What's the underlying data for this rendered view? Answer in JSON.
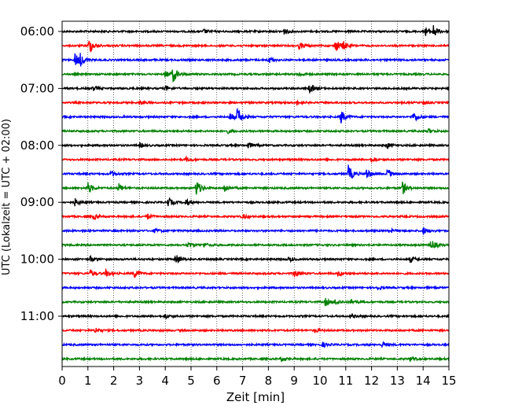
{
  "chart_data": {
    "type": "line",
    "title": "",
    "xlabel": "Zeit  [min]",
    "ylabel": "UTC (Lokalzeit = UTC + 02:00)",
    "xlim": [
      0,
      15
    ],
    "x_ticks": [
      0,
      1,
      2,
      3,
      4,
      5,
      6,
      7,
      8,
      9,
      10,
      11,
      12,
      13,
      14,
      15
    ],
    "x_tick_labels": [
      "0",
      "1",
      "2",
      "3",
      "4",
      "5",
      "6",
      "7",
      "8",
      "9",
      "10",
      "11",
      "12",
      "13",
      "14",
      "15"
    ],
    "y_tick_labels": [
      "06:00",
      "07:00",
      "08:00",
      "09:00",
      "10:00",
      "11:00"
    ],
    "grid": "vertical dotted lines at each minute",
    "trace_interval_minutes": 15,
    "start_time": "06:00",
    "colors": [
      "#000000",
      "#ff0000",
      "#0000ff",
      "#008000"
    ],
    "series": [
      {
        "start": "06:00",
        "color": "#000000",
        "events": [
          [
            5.5,
            0.3
          ],
          [
            8.6,
            0.4
          ],
          [
            14.1,
            0.6
          ],
          [
            14.4,
            0.8
          ]
        ]
      },
      {
        "start": "06:15",
        "color": "#ff0000",
        "events": [
          [
            1.05,
            1.1
          ],
          [
            9.2,
            0.5
          ],
          [
            10.6,
            0.9
          ],
          [
            10.9,
            0.5
          ]
        ]
      },
      {
        "start": "06:30",
        "color": "#0000ff",
        "events": [
          [
            0.5,
            1.0
          ],
          [
            0.7,
            0.7
          ],
          [
            8.0,
            0.4
          ]
        ]
      },
      {
        "start": "06:45",
        "color": "#008000",
        "events": [
          [
            4.0,
            0.5
          ],
          [
            4.3,
            1.1
          ],
          [
            9.2,
            0.3
          ]
        ]
      },
      {
        "start": "07:00",
        "color": "#000000",
        "events": [
          [
            1.2,
            0.3
          ],
          [
            4.0,
            0.3
          ],
          [
            9.6,
            0.7
          ]
        ]
      },
      {
        "start": "07:15",
        "color": "#ff0000",
        "events": [
          [
            3.0,
            0.3
          ],
          [
            9.1,
            0.3
          ],
          [
            14.0,
            0.3
          ]
        ]
      },
      {
        "start": "07:30",
        "color": "#0000ff",
        "events": [
          [
            6.5,
            0.6
          ],
          [
            6.8,
            1.3
          ],
          [
            10.8,
            1.0
          ],
          [
            13.6,
            0.8
          ]
        ]
      },
      {
        "start": "07:45",
        "color": "#008000",
        "events": [
          [
            6.4,
            0.3
          ],
          [
            14.2,
            0.3
          ]
        ]
      },
      {
        "start": "08:00",
        "color": "#000000",
        "events": [
          [
            3.0,
            0.3
          ],
          [
            7.2,
            0.5
          ],
          [
            12.6,
            0.4
          ]
        ]
      },
      {
        "start": "08:15",
        "color": "#ff0000",
        "events": [
          [
            4.8,
            0.3
          ],
          [
            12.0,
            0.3
          ]
        ]
      },
      {
        "start": "08:30",
        "color": "#0000ff",
        "events": [
          [
            1.9,
            0.4
          ],
          [
            11.1,
            1.2
          ],
          [
            11.8,
            0.8
          ],
          [
            12.6,
            0.7
          ]
        ]
      },
      {
        "start": "08:45",
        "color": "#008000",
        "events": [
          [
            1.0,
            0.8
          ],
          [
            2.2,
            0.6
          ],
          [
            5.2,
            1.2
          ],
          [
            6.3,
            0.6
          ],
          [
            13.2,
            0.9
          ]
        ]
      },
      {
        "start": "09:00",
        "color": "#000000",
        "events": [
          [
            0.5,
            0.5
          ],
          [
            4.1,
            0.7
          ],
          [
            4.8,
            0.5
          ]
        ]
      },
      {
        "start": "09:15",
        "color": "#ff0000",
        "events": [
          [
            1.2,
            0.4
          ],
          [
            3.3,
            0.4
          ],
          [
            7.0,
            0.3
          ]
        ]
      },
      {
        "start": "09:30",
        "color": "#0000ff",
        "events": [
          [
            3.6,
            0.3
          ],
          [
            12.7,
            0.3
          ],
          [
            14.0,
            0.5
          ]
        ]
      },
      {
        "start": "09:45",
        "color": "#008000",
        "events": [
          [
            4.9,
            0.4
          ],
          [
            5.5,
            0.3
          ],
          [
            14.3,
            0.8
          ]
        ]
      },
      {
        "start": "10:00",
        "color": "#000000",
        "events": [
          [
            1.1,
            0.4
          ],
          [
            4.4,
            0.9
          ],
          [
            8.8,
            0.3
          ],
          [
            13.5,
            0.4
          ]
        ]
      },
      {
        "start": "10:15",
        "color": "#ff0000",
        "events": [
          [
            1.1,
            0.5
          ],
          [
            1.7,
            0.5
          ],
          [
            2.8,
            0.6
          ],
          [
            9.0,
            0.6
          ],
          [
            10.7,
            0.4
          ]
        ]
      },
      {
        "start": "10:30",
        "color": "#0000ff",
        "events": [
          [
            12.2,
            0.3
          ]
        ]
      },
      {
        "start": "10:45",
        "color": "#008000",
        "events": [
          [
            10.2,
            0.5
          ],
          [
            10.6,
            0.4
          ],
          [
            11.2,
            0.4
          ]
        ]
      },
      {
        "start": "11:00",
        "color": "#000000",
        "events": [
          [
            4.0,
            0.3
          ],
          [
            11.2,
            0.3
          ]
        ]
      },
      {
        "start": "11:15",
        "color": "#ff0000",
        "events": [
          [
            1.3,
            0.4
          ],
          [
            9.8,
            0.3
          ]
        ]
      },
      {
        "start": "11:30",
        "color": "#0000ff",
        "events": [
          [
            10.1,
            0.3
          ],
          [
            12.4,
            0.3
          ]
        ]
      },
      {
        "start": "11:45",
        "color": "#008000",
        "events": [
          [
            8.5,
            0.3
          ],
          [
            13.5,
            0.3
          ]
        ]
      }
    ]
  }
}
